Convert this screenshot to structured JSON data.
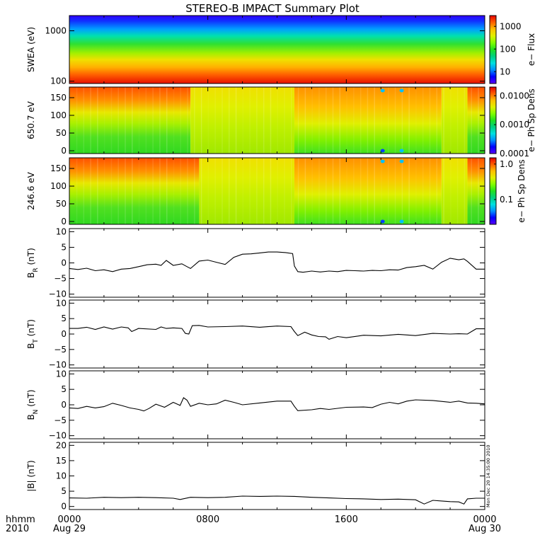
{
  "title": "STEREO-B IMPACT Summary Plot",
  "x_axis": {
    "row1_label": "hhmm",
    "row2_label": "2010",
    "ticks": [
      {
        "t": 0,
        "time": "0000",
        "date": "Aug 29"
      },
      {
        "t": 8,
        "time": "0800",
        "date": ""
      },
      {
        "t": 16,
        "time": "1600",
        "date": ""
      },
      {
        "t": 24,
        "time": "0000",
        "date": "Aug 30"
      }
    ],
    "minor_tick_hours": [
      2,
      4,
      6,
      10,
      12,
      14,
      18,
      20,
      22
    ]
  },
  "timestamp": "Mon Dec 20 14:35:00 2010",
  "colors": {
    "scale": [
      "#5a00ff",
      "#0000ff",
      "#0090ff",
      "#00e0e0",
      "#00d080",
      "#20e020",
      "#80ff00",
      "#e0f000",
      "#ffc000",
      "#ff6000",
      "#e80000"
    ]
  },
  "chart_data": [
    {
      "type": "heatmap",
      "id": "swea",
      "ylabel": "SWEA (eV)",
      "yscale": "log",
      "ylim": [
        90,
        2000
      ],
      "yticks": [
        {
          "v": 100,
          "label": "100"
        },
        {
          "v": 1000,
          "label": "1000"
        }
      ],
      "colorbar": {
        "label": "e− Flux",
        "scale": "log",
        "range": [
          3,
          3000
        ],
        "ticks": [
          {
            "v": 10,
            "label": "10"
          },
          {
            "v": 100,
            "label": "100"
          },
          {
            "v": 1000,
            "label": "1000"
          }
        ]
      },
      "description_values": {
        "low_energy_level": 0.93,
        "high_energy_level": 0.08
      }
    },
    {
      "type": "heatmap",
      "id": "pad650",
      "ylabel": "650.7 eV",
      "ylim": [
        -8,
        180
      ],
      "yticks": [
        {
          "v": 0,
          "label": "0"
        },
        {
          "v": 50,
          "label": "50"
        },
        {
          "v": 100,
          "label": "100"
        },
        {
          "v": 150,
          "label": "150"
        }
      ],
      "colorbar": {
        "label": "e− Ph Sp Dens",
        "scale": "log",
        "range": [
          0.0001,
          0.02
        ],
        "ticks": [
          {
            "v": 0.0001,
            "label": "0.0001"
          },
          {
            "v": 0.001,
            "label": "0.0010"
          },
          {
            "v": 0.01,
            "label": "0.0100"
          }
        ]
      }
    },
    {
      "type": "heatmap",
      "id": "pad246",
      "ylabel": "246.6 eV",
      "ylim": [
        -8,
        180
      ],
      "yticks": [
        {
          "v": 0,
          "label": "0"
        },
        {
          "v": 50,
          "label": "50"
        },
        {
          "v": 100,
          "label": "100"
        },
        {
          "v": 150,
          "label": "150"
        }
      ],
      "colorbar": {
        "label": "e− Ph Sp Dens",
        "scale": "log",
        "range": [
          0.02,
          1.5
        ],
        "ticks": [
          {
            "v": 0.1,
            "label": "0.1"
          },
          {
            "v": 1.0,
            "label": "1.0"
          }
        ]
      }
    },
    {
      "type": "line",
      "id": "br",
      "ylabel": "B",
      "ylabel_sub": "R",
      "ylabel_unit": " (nT)",
      "ylim": [
        -11,
        11
      ],
      "yticks": [
        {
          "v": -10,
          "label": "−10"
        },
        {
          "v": -5,
          "label": "−5"
        },
        {
          "v": 0,
          "label": "0"
        },
        {
          "v": 5,
          "label": "5"
        },
        {
          "v": 10,
          "label": "10"
        }
      ],
      "x": [
        0,
        0.5,
        1,
        1.5,
        2,
        2.5,
        3,
        3.5,
        4,
        4.5,
        5,
        5.3,
        5.6,
        6,
        6.5,
        6.8,
        7,
        7.5,
        8,
        8.5,
        9,
        9.5,
        10,
        10.5,
        11,
        11.5,
        12,
        12.5,
        12.9,
        13,
        13.2,
        13.5,
        14,
        14.5,
        15,
        15.5,
        16,
        16.5,
        17,
        17.5,
        18,
        18.5,
        19,
        19.5,
        20,
        20.5,
        21,
        21.5,
        22,
        22.5,
        22.8,
        23,
        23.5,
        24
      ],
      "y": [
        -1.8,
        -2.1,
        -1.7,
        -2.5,
        -2.2,
        -2.8,
        -2.0,
        -1.8,
        -1.2,
        -0.6,
        -0.4,
        -0.8,
        0.8,
        -0.8,
        -0.3,
        -1.2,
        -1.8,
        0.6,
        0.9,
        0.2,
        -0.5,
        1.8,
        2.8,
        2.9,
        3.2,
        3.5,
        3.5,
        3.3,
        3.0,
        -1.0,
        -2.8,
        -3.0,
        -2.6,
        -2.9,
        -2.6,
        -2.8,
        -2.4,
        -2.5,
        -2.6,
        -2.4,
        -2.5,
        -2.2,
        -2.3,
        -1.5,
        -1.2,
        -0.8,
        -2.0,
        0.2,
        1.5,
        1.0,
        1.3,
        0.5,
        -2.0,
        -2.0
      ]
    },
    {
      "type": "line",
      "id": "bt",
      "ylabel": "B",
      "ylabel_sub": "T",
      "ylabel_unit": " (nT)",
      "ylim": [
        -11,
        11
      ],
      "yticks": [
        {
          "v": -10,
          "label": "−10"
        },
        {
          "v": -5,
          "label": "−5"
        },
        {
          "v": 0,
          "label": "0"
        },
        {
          "v": 5,
          "label": "5"
        },
        {
          "v": 10,
          "label": "10"
        }
      ],
      "x": [
        0,
        0.5,
        1,
        1.5,
        2,
        2.5,
        3,
        3.4,
        3.6,
        4,
        5,
        5.3,
        5.6,
        6,
        6.5,
        6.7,
        6.9,
        7.1,
        7.5,
        8,
        9,
        10,
        11,
        12,
        12.8,
        13,
        13.2,
        13.6,
        14,
        14.4,
        14.8,
        15,
        15.5,
        16,
        17,
        18,
        19,
        20,
        21,
        22,
        22.5,
        23,
        23.5,
        24
      ],
      "y": [
        1.8,
        1.8,
        2.2,
        1.5,
        2.3,
        1.6,
        2.3,
        2.0,
        0.8,
        1.8,
        1.5,
        2.3,
        1.8,
        2.0,
        1.8,
        0.2,
        0.0,
        2.7,
        2.8,
        2.3,
        2.4,
        2.6,
        2.2,
        2.6,
        2.4,
        0.8,
        -0.5,
        0.6,
        -0.3,
        -0.8,
        -0.9,
        -1.7,
        -0.8,
        -1.2,
        -0.4,
        -0.6,
        -0.1,
        -0.5,
        0.2,
        0.0,
        0.1,
        0.0,
        1.7,
        1.7
      ]
    },
    {
      "type": "line",
      "id": "bn",
      "ylabel": "B",
      "ylabel_sub": "N",
      "ylabel_unit": " (nT)",
      "ylim": [
        -11,
        11
      ],
      "yticks": [
        {
          "v": -10,
          "label": "−10"
        },
        {
          "v": -5,
          "label": "−5"
        },
        {
          "v": 0,
          "label": "0"
        },
        {
          "v": 5,
          "label": "5"
        },
        {
          "v": 10,
          "label": "10"
        }
      ],
      "x": [
        0,
        0.5,
        1,
        1.5,
        2,
        2.5,
        3,
        3.5,
        4,
        4.3,
        4.6,
        5,
        5.5,
        6,
        6.4,
        6.6,
        6.8,
        7,
        7.5,
        8,
        8.5,
        9,
        9.5,
        10,
        11,
        12,
        12.8,
        13,
        13.2,
        14,
        14.5,
        15,
        16,
        17,
        17.5,
        18,
        18.5,
        19,
        19.5,
        20,
        21,
        22,
        22.5,
        23,
        23.5,
        24
      ],
      "y": [
        -1.0,
        -1.2,
        -0.5,
        -1.0,
        -0.6,
        0.5,
        -0.2,
        -1.0,
        -1.5,
        -2.0,
        -1.2,
        0.2,
        -0.8,
        0.8,
        -0.2,
        2.3,
        1.5,
        -0.5,
        0.5,
        0.0,
        0.3,
        1.5,
        0.8,
        0.0,
        0.6,
        1.2,
        1.2,
        -0.5,
        -1.9,
        -1.6,
        -1.2,
        -1.5,
        -0.8,
        -0.7,
        -0.9,
        0.2,
        0.8,
        0.3,
        1.2,
        1.6,
        1.4,
        0.8,
        1.2,
        0.6,
        0.5,
        0.3
      ]
    },
    {
      "type": "line",
      "id": "bmag",
      "ylabel": "|B| (nT)",
      "ylim": [
        -1,
        21
      ],
      "yticks": [
        {
          "v": 0,
          "label": "0"
        },
        {
          "v": 5,
          "label": "5"
        },
        {
          "v": 10,
          "label": "10"
        },
        {
          "v": 15,
          "label": "15"
        },
        {
          "v": 20,
          "label": "20"
        }
      ],
      "x": [
        0,
        1,
        2,
        3,
        4,
        5,
        6,
        6.4,
        7,
        8,
        9,
        10,
        11,
        12,
        13,
        14,
        15,
        16,
        17,
        18,
        19,
        20,
        20.5,
        21,
        21.5,
        22,
        22.5,
        22.8,
        23,
        23.5,
        24
      ],
      "y": [
        2.8,
        2.7,
        3.0,
        2.9,
        3.0,
        2.9,
        2.7,
        2.3,
        3.0,
        2.9,
        3.0,
        3.4,
        3.3,
        3.4,
        3.3,
        3.0,
        2.8,
        2.6,
        2.5,
        2.3,
        2.4,
        2.2,
        0.8,
        2.0,
        1.8,
        1.6,
        1.5,
        0.8,
        2.5,
        2.7,
        2.7
      ]
    }
  ]
}
